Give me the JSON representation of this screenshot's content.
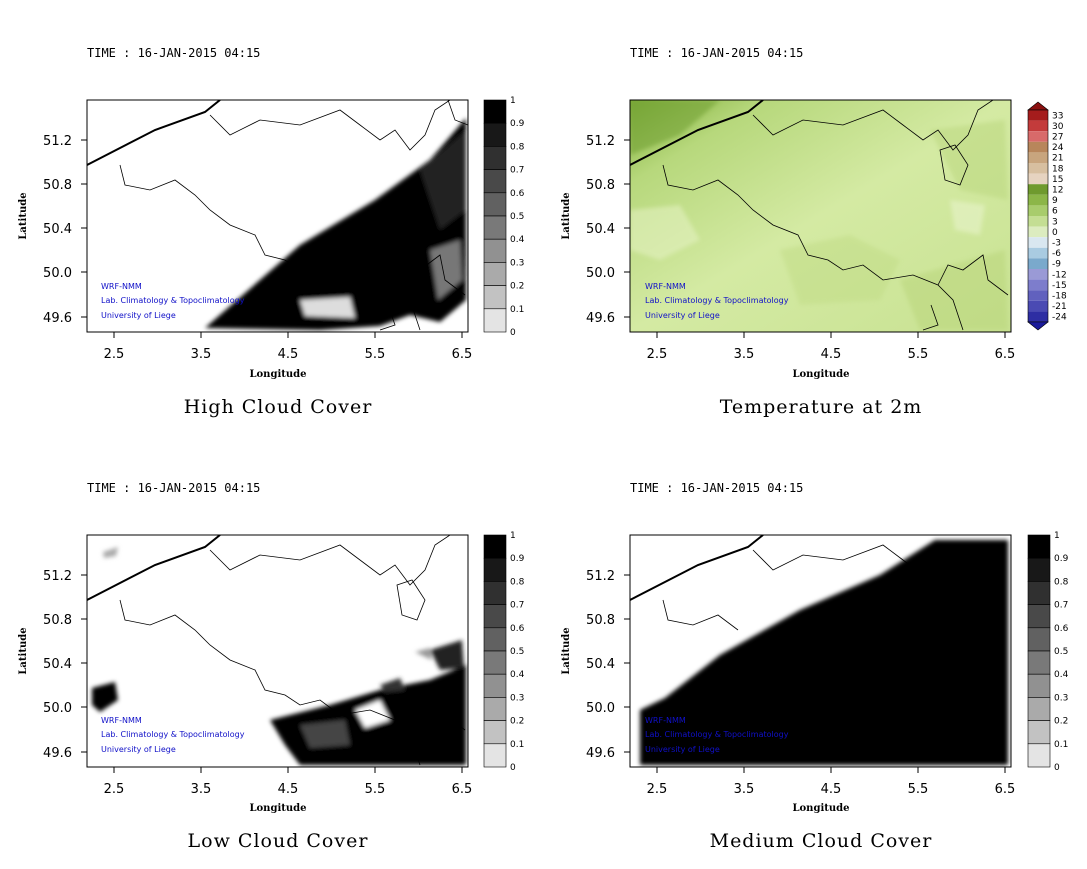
{
  "panels": [
    {
      "id": "high-cloud",
      "time_label": "TIME : 16-JAN-2015 04:15",
      "title": "High Cloud Cover",
      "xlabel": "Longitude",
      "ylabel": "Latitude",
      "x_ticks": [
        "2.5",
        "3.5",
        "4.5",
        "5.5",
        "6.5"
      ],
      "y_ticks": [
        "51.2",
        "50.8",
        "50.4",
        "50.0",
        "49.6"
      ],
      "credits": [
        "WRF-NMM",
        "Lab. Climatology & Topoclimatology",
        "University of Liege"
      ],
      "colorbar": {
        "type": "gray",
        "labels": [
          "1",
          "0.9",
          "0.8",
          "0.7",
          "0.6",
          "0.5",
          "0.4",
          "0.3",
          "0.2",
          "0.1",
          "0"
        ]
      }
    },
    {
      "id": "temperature",
      "time_label": "TIME : 16-JAN-2015 04:15",
      "title": "Temperature at 2m",
      "xlabel": "Longitude",
      "ylabel": "Latitude",
      "x_ticks": [
        "2.5",
        "3.5",
        "4.5",
        "5.5",
        "6.5"
      ],
      "y_ticks": [
        "51.2",
        "50.8",
        "50.4",
        "50.0",
        "49.6"
      ],
      "credits": [
        "WRF-NMM",
        "Lab. Climatology & Topoclimatology",
        "University of Liege"
      ],
      "colorbar": {
        "type": "temperature",
        "labels": [
          "33",
          "30",
          "27",
          "24",
          "21",
          "18",
          "15",
          "12",
          "9",
          "6",
          "3",
          "0",
          "-3",
          "-6",
          "-9",
          "-12",
          "-15",
          "-18",
          "-21",
          "-24"
        ]
      }
    },
    {
      "id": "low-cloud",
      "time_label": "TIME : 16-JAN-2015 04:15",
      "title": "Low Cloud Cover",
      "xlabel": "Longitude",
      "ylabel": "Latitude",
      "x_ticks": [
        "2.5",
        "3.5",
        "4.5",
        "5.5",
        "6.5"
      ],
      "y_ticks": [
        "51.2",
        "50.8",
        "50.4",
        "50.0",
        "49.6"
      ],
      "credits": [
        "WRF-NMM",
        "Lab. Climatology & Topoclimatology",
        "University of Liege"
      ],
      "colorbar": {
        "type": "gray",
        "labels": [
          "1",
          "0.9",
          "0.8",
          "0.7",
          "0.6",
          "0.5",
          "0.4",
          "0.3",
          "0.2",
          "0.1",
          "0"
        ]
      }
    },
    {
      "id": "medium-cloud",
      "time_label": "TIME : 16-JAN-2015 04:15",
      "title": "Medium Cloud Cover",
      "xlabel": "Longitude",
      "ylabel": "Latitude",
      "x_ticks": [
        "2.5",
        "3.5",
        "4.5",
        "5.5",
        "6.5"
      ],
      "y_ticks": [
        "51.2",
        "50.8",
        "50.4",
        "50.0",
        "49.6"
      ],
      "credits": [
        "WRF-NMM",
        "Lab. Climatology & Topoclimatology",
        "University of Liege"
      ],
      "colorbar": {
        "type": "gray",
        "labels": [
          "1",
          "0.9",
          "0.8",
          "0.7",
          "0.6",
          "0.5",
          "0.4",
          "0.3",
          "0.2",
          "0.1",
          "0"
        ]
      }
    }
  ],
  "colors": {
    "credit_text": "#1010c8",
    "temperature_field": "#d8ecab",
    "cloud_field": "#000000"
  }
}
